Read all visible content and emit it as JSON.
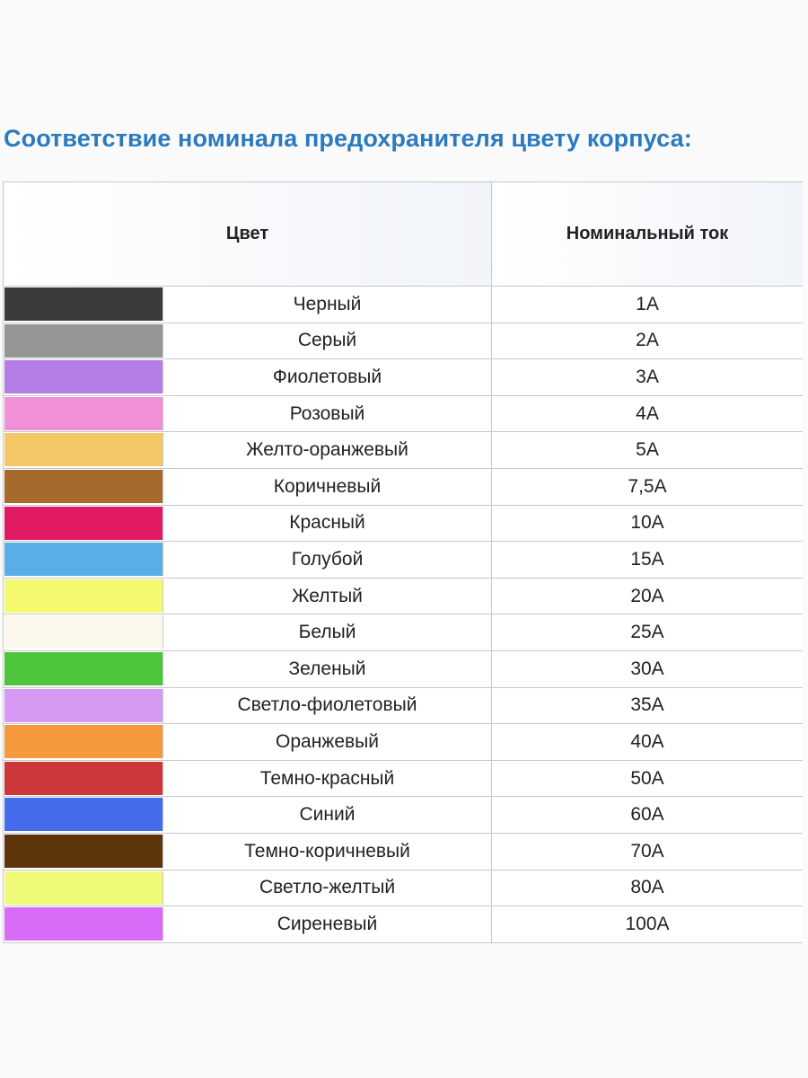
{
  "title": "Соответствие номинала предохранителя цвету корпуса:",
  "table": {
    "headers": {
      "color": "Цвет",
      "current": "Номинальный ток"
    },
    "rows": [
      {
        "swatch": "#3a3a3a",
        "name": "Черный",
        "current": "1A"
      },
      {
        "swatch": "#959595",
        "name": "Серый",
        "current": "2A"
      },
      {
        "swatch": "#b57ee6",
        "name": "Фиолетовый",
        "current": "3A"
      },
      {
        "swatch": "#f090d6",
        "name": "Розовый",
        "current": "4A"
      },
      {
        "swatch": "#f4c766",
        "name": "Желто-оранжевый",
        "current": "5A"
      },
      {
        "swatch": "#a66a2c",
        "name": "Коричневый",
        "current": "7,5A"
      },
      {
        "swatch": "#e01b64",
        "name": "Красный",
        "current": "10A"
      },
      {
        "swatch": "#5aaee6",
        "name": "Голубой",
        "current": "15A"
      },
      {
        "swatch": "#f4fa6e",
        "name": "Желтый",
        "current": "20A"
      },
      {
        "swatch": "#fcf8ee",
        "name": "Белый",
        "current": "25A"
      },
      {
        "swatch": "#4cc43c",
        "name": "Зеленый",
        "current": "30A"
      },
      {
        "swatch": "#d79af4",
        "name": "Светло-фиолетовый",
        "current": "35A"
      },
      {
        "swatch": "#f4993c",
        "name": "Оранжевый",
        "current": "40A"
      },
      {
        "swatch": "#cc383a",
        "name": "Темно-красный",
        "current": "50A"
      },
      {
        "swatch": "#446cec",
        "name": "Синий",
        "current": "60A"
      },
      {
        "swatch": "#5e340c",
        "name": "Темно-коричневый",
        "current": "70A"
      },
      {
        "swatch": "#eefa78",
        "name": "Светло-желтый",
        "current": "80A"
      },
      {
        "swatch": "#d86cf8",
        "name": "Сиреневый",
        "current": "100A"
      }
    ]
  }
}
